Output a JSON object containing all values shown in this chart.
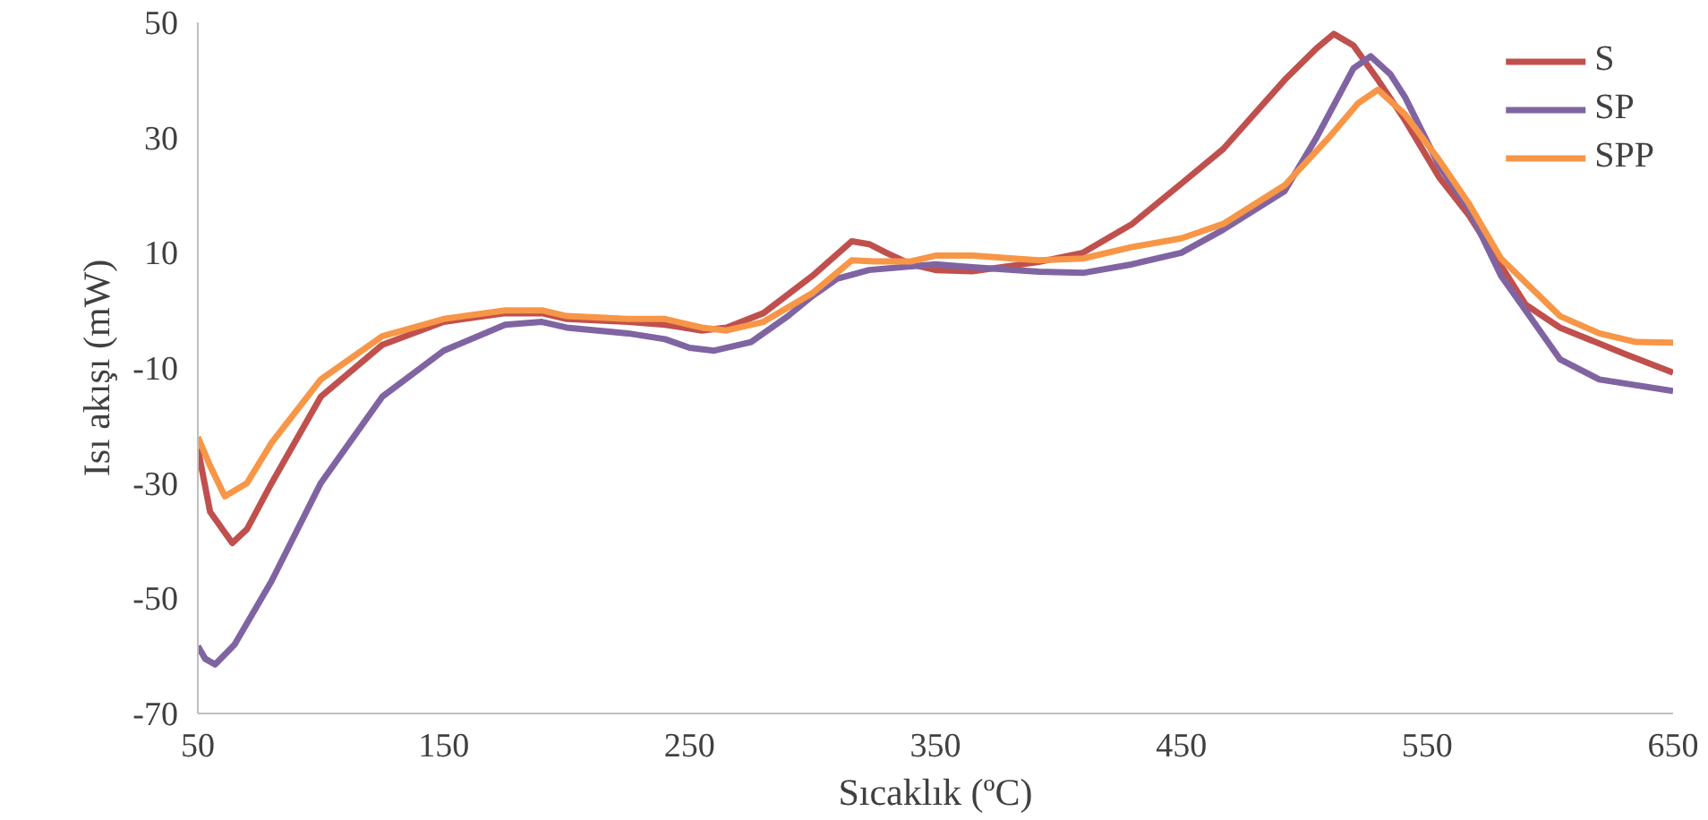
{
  "chart_data": {
    "type": "line",
    "xlabel": "Sıcaklık (ºC)",
    "ylabel": "Isı akışı (mW)",
    "xlim": [
      50,
      650
    ],
    "ylim": [
      -70,
      50
    ],
    "xticks": [
      50,
      150,
      250,
      350,
      450,
      550,
      650
    ],
    "yticks": [
      -70,
      -50,
      -30,
      -10,
      10,
      30,
      50
    ],
    "grid": false,
    "legend": "top right",
    "marker": "none",
    "line_style": "solid",
    "series": [
      {
        "name": "S",
        "color": "#c0504d",
        "x": [
          50,
          55,
          64,
          70,
          80,
          100,
          125,
          150,
          175,
          190,
          200,
          225,
          240,
          255,
          265,
          280,
          300,
          316,
          323,
          330,
          340,
          350,
          365,
          392,
          410,
          430,
          450,
          467,
          492,
          505,
          512,
          520,
          530,
          541,
          555,
          567,
          590,
          604,
          630,
          650
        ],
        "values": [
          -24,
          -35,
          -40.4,
          -38,
          -30,
          -15,
          -6,
          -2,
          -0.5,
          -0.5,
          -1.5,
          -2,
          -2.5,
          -3.5,
          -3,
          -0.5,
          6,
          12,
          11.5,
          10,
          8,
          7,
          6.8,
          8.4,
          10,
          15,
          22,
          28,
          40,
          45.5,
          48,
          46,
          40,
          33,
          23,
          16.5,
          1,
          -3,
          -7.5,
          -10.8
        ]
      },
      {
        "name": "SP",
        "color": "#8064a2",
        "x": [
          50,
          53,
          57,
          65,
          80,
          100,
          125,
          150,
          175,
          190,
          200,
          225,
          240,
          250,
          260,
          275,
          290,
          300,
          310,
          323,
          350,
          365,
          392,
          410,
          430,
          450,
          467,
          492,
          505,
          520,
          527,
          535,
          541,
          555,
          567,
          580,
          590,
          604,
          620,
          650
        ],
        "values": [
          -58.3,
          -60.5,
          -61.5,
          -58,
          -47,
          -30,
          -15,
          -7,
          -2.5,
          -2,
          -3,
          -4,
          -5,
          -6.5,
          -7,
          -5.5,
          -1,
          2.5,
          5.5,
          7,
          8,
          7.5,
          6.7,
          6.5,
          8,
          10,
          14,
          20.7,
          30,
          42,
          44.1,
          41,
          37,
          25,
          17.5,
          6,
          0,
          -8.5,
          -12,
          -14
        ]
      },
      {
        "name": "SPP",
        "color": "#f79646",
        "x": [
          50,
          55,
          61,
          70,
          80,
          100,
          125,
          150,
          175,
          190,
          200,
          225,
          240,
          255,
          265,
          280,
          300,
          316,
          325,
          340,
          350,
          365,
          392,
          410,
          430,
          450,
          467,
          492,
          510,
          522,
          530,
          541,
          555,
          567,
          580,
          604,
          620,
          635,
          650
        ],
        "values": [
          -22,
          -27,
          -32.3,
          -30,
          -23,
          -12,
          -4.5,
          -1.5,
          0,
          0,
          -1,
          -1.5,
          -1.5,
          -3,
          -3.5,
          -2,
          3,
          8.7,
          8.5,
          8.5,
          9.5,
          9.5,
          8.7,
          9,
          11,
          12.5,
          15,
          21.7,
          30,
          36,
          38.3,
          34,
          26,
          18.5,
          9,
          -1,
          -4,
          -5.5,
          -5.6
        ]
      }
    ]
  }
}
